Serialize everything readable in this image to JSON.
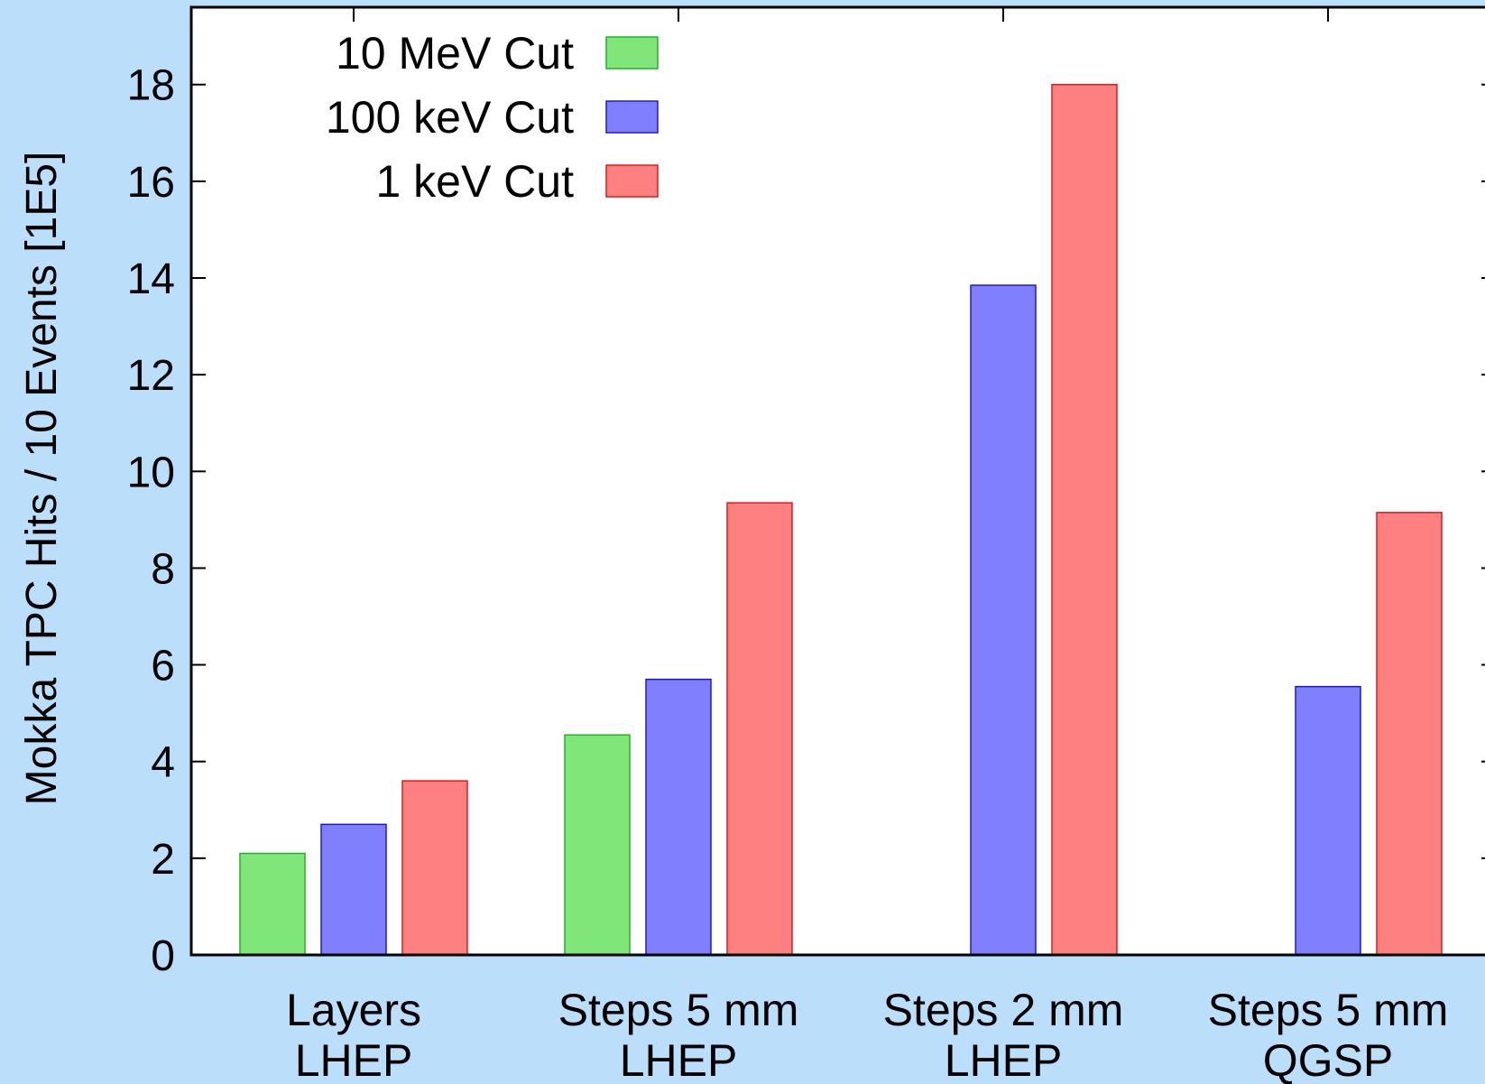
{
  "chart_data": {
    "type": "bar",
    "title": "",
    "xlabel": "",
    "ylabel": "Mokka TPC Hits / 10 Events [1E5]",
    "ylim": [
      0,
      19.6
    ],
    "yticks": [
      0,
      2,
      4,
      6,
      8,
      10,
      12,
      14,
      16,
      18
    ],
    "grid": false,
    "legend_position": "top-left",
    "categories": [
      [
        "Layers",
        "LHEP"
      ],
      [
        "Steps 5 mm",
        "LHEP"
      ],
      [
        "Steps 2 mm",
        "LHEP"
      ],
      [
        "Steps 5 mm",
        "QGSP"
      ]
    ],
    "series": [
      {
        "name": "10 MeV Cut",
        "color": "#80e67a",
        "stroke": "#22b322",
        "values": [
          2.1,
          4.55,
          null,
          null
        ]
      },
      {
        "name": "100 keV Cut",
        "color": "#8080ff",
        "stroke": "#1a1ad6",
        "values": [
          2.7,
          5.7,
          13.85,
          5.55
        ]
      },
      {
        "name": "1 keV Cut",
        "color": "#ff8080",
        "stroke": "#e01a1a",
        "values": [
          3.6,
          9.35,
          18.0,
          9.15
        ]
      }
    ]
  }
}
